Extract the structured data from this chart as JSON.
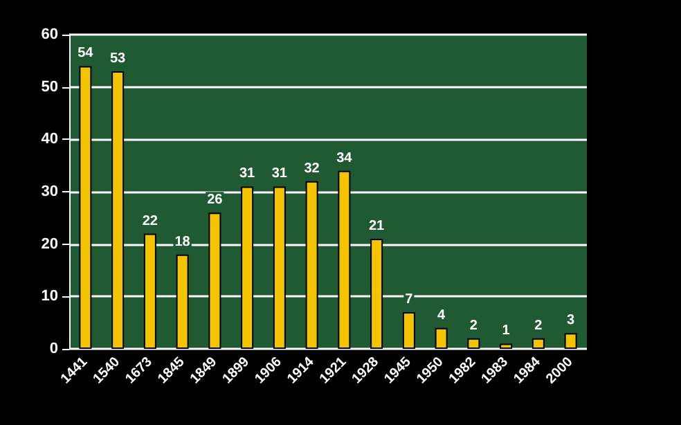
{
  "chart_data": {
    "type": "bar",
    "categories": [
      "1441",
      "1540",
      "1673",
      "1845",
      "1849",
      "1899",
      "1906",
      "1914",
      "1921",
      "1928",
      "1945",
      "1950",
      "1982",
      "1983",
      "1984",
      "2000"
    ],
    "values": [
      54,
      53,
      22,
      18,
      26,
      31,
      31,
      32,
      34,
      21,
      7,
      4,
      2,
      1,
      2,
      3
    ],
    "color": "#f5c400",
    "ylim": [
      0,
      60
    ],
    "yticks": [
      0,
      10,
      20,
      30,
      40,
      50,
      60
    ],
    "grid": "y",
    "data_labels": true
  }
}
